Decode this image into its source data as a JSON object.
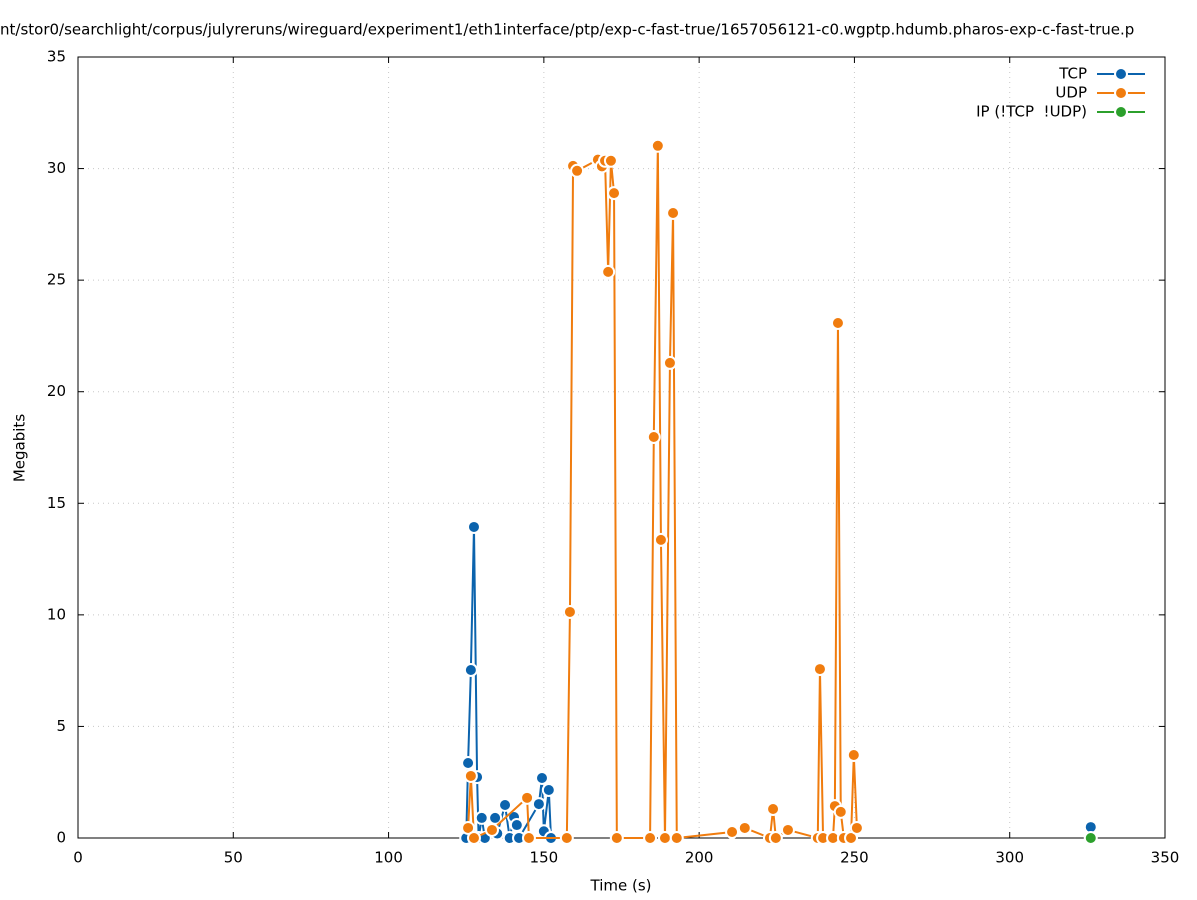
{
  "chart_data": {
    "type": "line",
    "title": "nt/stor0/searchlight/corpus/julyreruns/wireguard/experiment1/eth1interface/ptp/exp-c-fast-true/1657056121-c0.wgptp.hdumb.pharos-exp-c-fast-true.p",
    "x_label": "Time (s)",
    "y_label": "Megabits",
    "xlim": [
      0,
      350
    ],
    "xticks": [
      0,
      50,
      100,
      150,
      200,
      250,
      300,
      350
    ],
    "ylim": [
      0,
      35
    ],
    "yticks": [
      0,
      5,
      10,
      15,
      20,
      25,
      30,
      35
    ],
    "grid": true,
    "legend": "top-right",
    "series": [
      {
        "name": "TCP",
        "color": "#0b63ad",
        "x": [
          125,
          125.6,
          126.5,
          127.5,
          128.5,
          129,
          130,
          131,
          134.3,
          135,
          137.5,
          139,
          140.4,
          141.3,
          142,
          148.4,
          149.4,
          150,
          151.6,
          152.3,
          null,
          326.1
        ],
        "values": [
          0,
          3.36,
          7.53,
          13.94,
          2.73,
          0,
          0.9,
          0,
          0.9,
          0.2,
          1.48,
          0,
          0.94,
          0.58,
          0,
          1.52,
          2.69,
          0.3,
          2.15,
          0,
          null,
          0.49
        ]
      },
      {
        "name": "UDP",
        "color": "#f07c0e",
        "x": [
          125.6,
          126.5,
          127.5,
          133.3,
          144.6,
          145.2,
          157.4,
          158.4,
          159.4,
          160.7,
          167.4,
          168.7,
          169.7,
          170.7,
          171.6,
          172.6,
          173.5,
          184.2,
          185.4,
          186.7,
          187.7,
          189,
          190.6,
          191.6,
          192.8,
          210.6,
          214.7,
          222.8,
          223.8,
          224.7,
          228.6,
          238.2,
          238.9,
          239.9,
          243.1,
          243.7,
          244.7,
          245.6,
          246.6,
          248.9,
          249.8,
          250.8
        ],
        "values": [
          0.45,
          2.78,
          0,
          0.36,
          1.8,
          0,
          0,
          10.13,
          30.12,
          29.9,
          30.4,
          30.1,
          30.35,
          25.37,
          30.35,
          28.9,
          0,
          0,
          17.97,
          31.02,
          13.36,
          0,
          21.29,
          28.01,
          0,
          0.27,
          0.45,
          0,
          1.3,
          0,
          0.36,
          0,
          7.57,
          0,
          0,
          1.43,
          23.08,
          1.17,
          0,
          0,
          3.72,
          0.45
        ]
      },
      {
        "name": "IP (!TCP  !UDP)",
        "color": "#2ca02c",
        "x": [
          326.1
        ],
        "values": [
          0
        ]
      }
    ]
  }
}
